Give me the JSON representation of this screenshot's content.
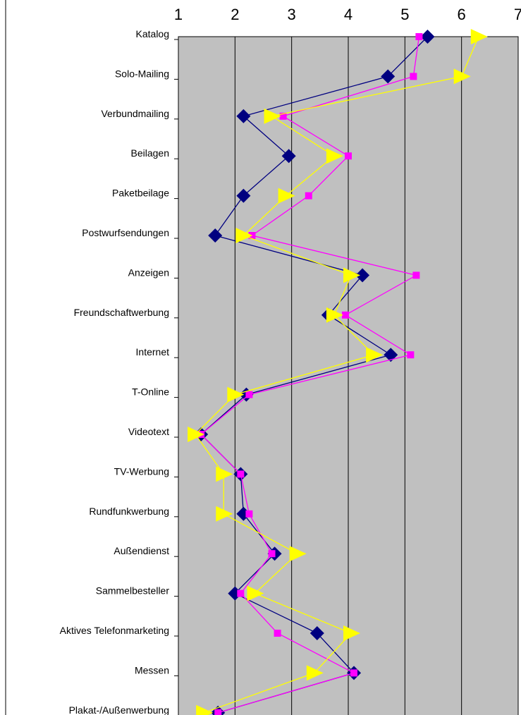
{
  "chart_data": {
    "type": "line",
    "orientation": "horizontal-values",
    "title": "",
    "xlabel": "",
    "ylabel": "",
    "xlim": [
      1,
      7
    ],
    "x_ticks": [
      "1",
      "2",
      "3",
      "4",
      "5",
      "6",
      "7"
    ],
    "grid": true,
    "legend": "none",
    "plot_background": "#c0c0c0",
    "categories": [
      "Katalog",
      "Solo-Mailing",
      "Verbundmailing",
      "Beilagen",
      "Paketbeilage",
      "Postwurfsendungen",
      "Anzeigen",
      "Freundschaftwerbung",
      "Internet",
      "T-Online",
      "Videotext",
      "TV-Werbung",
      "Rundfunkwerbung",
      "Außendienst",
      "Sammelbesteller",
      "Aktives Telefonmarketing",
      "Messen",
      "Plakat-/Außenwerbung"
    ],
    "series": [
      {
        "color": "#000080",
        "marker": "diamond",
        "values": [
          5.4,
          4.7,
          2.15,
          2.95,
          2.15,
          1.65,
          4.25,
          3.65,
          4.75,
          2.2,
          1.4,
          2.1,
          2.15,
          2.7,
          2.0,
          3.45,
          4.1,
          1.7
        ]
      },
      {
        "color": "#ff00ff",
        "marker": "square",
        "values": [
          5.25,
          5.15,
          2.85,
          4.0,
          3.3,
          2.3,
          5.2,
          3.95,
          5.1,
          2.25,
          1.4,
          2.1,
          2.25,
          2.65,
          2.1,
          2.75,
          4.1,
          1.7
        ]
      },
      {
        "color": "#ffff00",
        "marker": "triangle",
        "values": [
          6.3,
          6.0,
          2.65,
          3.75,
          2.9,
          2.15,
          4.05,
          3.75,
          4.45,
          2.0,
          1.3,
          1.8,
          1.8,
          3.1,
          2.35,
          4.05,
          3.4,
          1.45
        ]
      }
    ]
  }
}
